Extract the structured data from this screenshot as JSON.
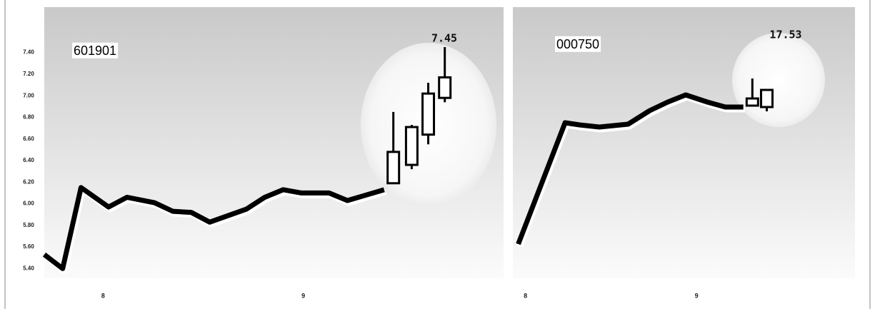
{
  "chart_data": [
    {
      "type": "line",
      "label": "601901",
      "annotation": "7.45",
      "ylim": [
        5.31,
        7.82
      ],
      "yticks": [
        {
          "value": 7.4,
          "label": "7.40"
        },
        {
          "value": 7.2,
          "label": "7.20"
        },
        {
          "value": 7.0,
          "label": "7.00"
        },
        {
          "value": 6.8,
          "label": "6.80"
        },
        {
          "value": 6.6,
          "label": "6.60"
        },
        {
          "value": 6.4,
          "label": "6.40"
        },
        {
          "value": 6.2,
          "label": "6.20"
        },
        {
          "value": 6.0,
          "label": "6.00"
        },
        {
          "value": 5.8,
          "label": "5.80"
        },
        {
          "value": 5.6,
          "label": "5.60"
        },
        {
          "value": 5.4,
          "label": "5.40"
        }
      ],
      "xlim": [
        0,
        25
      ],
      "xticks": [
        {
          "value": 3.2,
          "label": "8"
        },
        {
          "value": 14.1,
          "label": "9"
        }
      ],
      "x": [
        0,
        1,
        2,
        3.5,
        4.5,
        6,
        7,
        8,
        9,
        11,
        12,
        13,
        14,
        15.5,
        16.5,
        18.5
      ],
      "values": [
        5.53,
        5.4,
        6.15,
        5.97,
        6.06,
        6.01,
        5.93,
        5.92,
        5.83,
        5.95,
        6.06,
        6.13,
        6.1,
        6.1,
        6.03,
        6.13
      ],
      "color": "#000000",
      "candles": [
        {
          "x": 19,
          "open": 6.19,
          "close": 6.48,
          "high": 6.85,
          "low": 6.19
        },
        {
          "x": 20,
          "open": 6.36,
          "close": 6.71,
          "high": 6.73,
          "low": 6.32
        },
        {
          "x": 20.9,
          "open": 6.64,
          "close": 7.02,
          "high": 7.12,
          "low": 6.55
        },
        {
          "x": 21.8,
          "open": 6.98,
          "close": 7.17,
          "high": 7.45,
          "low": 6.94
        }
      ]
    },
    {
      "type": "line",
      "label": "000750",
      "annotation": "17.53",
      "ylim": [
        14.73,
        18.53
      ],
      "xlim": [
        0,
        19
      ],
      "xticks": [
        {
          "value": 0.7,
          "label": "8"
        },
        {
          "value": 10.2,
          "label": "9"
        }
      ],
      "x": [
        0.3,
        2.9,
        3.7,
        4.8,
        6.4,
        7.6,
        8.6,
        9.6,
        10.8,
        11.8,
        12.8
      ],
      "values": [
        15.21,
        16.91,
        16.88,
        16.85,
        16.89,
        17.08,
        17.2,
        17.3,
        17.2,
        17.13,
        17.13
      ],
      "color": "#000000",
      "candles": [
        {
          "x": 13.3,
          "open": 17.15,
          "close": 17.25,
          "high": 17.53,
          "low": 17.15
        },
        {
          "x": 14.1,
          "open": 17.13,
          "close": 17.37,
          "high": 17.37,
          "low": 17.07
        }
      ]
    }
  ]
}
